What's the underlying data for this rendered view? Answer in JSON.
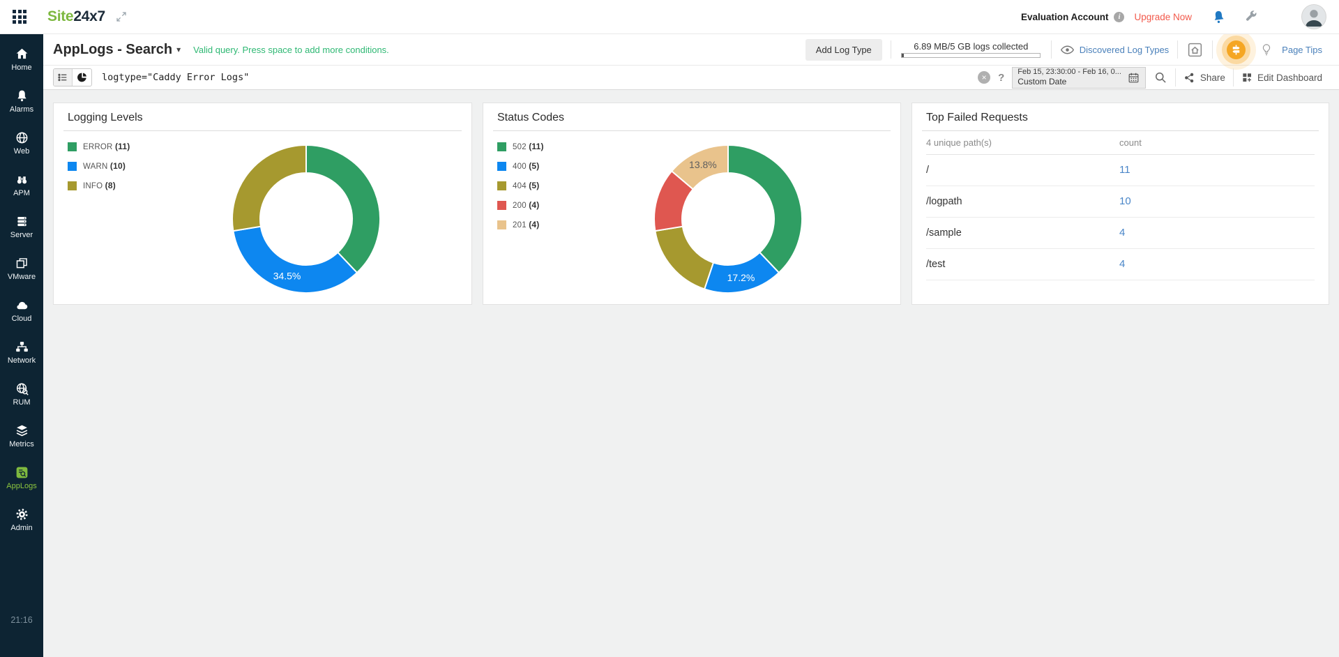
{
  "topbar": {
    "logo_prefix": "Site",
    "logo_suffix": "24x7",
    "account_label": "Evaluation Account",
    "upgrade_label": "Upgrade Now"
  },
  "sidebar": {
    "items": [
      {
        "icon": "home",
        "label": "Home",
        "active": false
      },
      {
        "icon": "alarms",
        "label": "Alarms",
        "active": false
      },
      {
        "icon": "web",
        "label": "Web",
        "active": false
      },
      {
        "icon": "apm",
        "label": "APM",
        "active": false
      },
      {
        "icon": "server",
        "label": "Server",
        "active": false
      },
      {
        "icon": "vmware",
        "label": "VMware",
        "active": false
      },
      {
        "icon": "cloud",
        "label": "Cloud",
        "active": false
      },
      {
        "icon": "network",
        "label": "Network",
        "active": false
      },
      {
        "icon": "rum",
        "label": "RUM",
        "active": false
      },
      {
        "icon": "metrics",
        "label": "Metrics",
        "active": false
      },
      {
        "icon": "applogs",
        "label": "AppLogs",
        "active": true
      },
      {
        "icon": "admin",
        "label": "Admin",
        "active": false
      }
    ],
    "time": "21:16"
  },
  "header": {
    "title": "AppLogs - Search",
    "hint": "Valid query. Press space to add more conditions.",
    "add_log_type_label": "Add Log Type",
    "quota_text": "6.89 MB/5 GB logs collected",
    "quota_fill_percent": 0.13,
    "discovered_label": "Discovered Log Types",
    "page_tips_label": "Page Tips"
  },
  "querybar": {
    "query": "logtype=\"Caddy Error Logs\"",
    "date_range": "Feb 15, 23:30:00 - Feb 16, 0...",
    "date_mode": "Custom Date",
    "share_label": "Share",
    "edit_dashboard_label": "Edit Dashboard"
  },
  "icons": {
    "clear": "×",
    "caret_down": "▾",
    "help": "?",
    "info": "i"
  },
  "chart_data": [
    {
      "type": "pie",
      "title": "Logging Levels",
      "legend_position": "left",
      "slices": [
        {
          "label": "ERROR",
          "value": 11,
          "pct": "37.9%",
          "color": "#2f9e63",
          "show_label": false,
          "label_color": "#ffffff"
        },
        {
          "label": "WARN",
          "value": 10,
          "pct": "34.5%",
          "color": "#0d87f0",
          "show_label": true,
          "label_color": "#ffffff"
        },
        {
          "label": "INFO",
          "value": 8,
          "pct": "27.6%",
          "color": "#a6992f",
          "show_label": false,
          "label_color": "#ffffff"
        }
      ]
    },
    {
      "type": "pie",
      "title": "Status Codes",
      "legend_position": "left",
      "slices": [
        {
          "label": "502",
          "value": 11,
          "pct": "37.9%",
          "color": "#2f9e63",
          "show_label": false,
          "label_color": "#ffffff"
        },
        {
          "label": "400",
          "value": 5,
          "pct": "17.2%",
          "color": "#0d87f0",
          "show_label": true,
          "label_color": "#ffffff"
        },
        {
          "label": "404",
          "value": 5,
          "pct": "17.2%",
          "color": "#a6992f",
          "show_label": false,
          "label_color": "#ffffff"
        },
        {
          "label": "200",
          "value": 4,
          "pct": "13.8%",
          "color": "#df5750",
          "show_label": false,
          "label_color": "#ffffff"
        },
        {
          "label": "201",
          "value": 4,
          "pct": "13.8%",
          "color": "#e9c38c",
          "show_label": true,
          "label_color": "#5e5e5e"
        }
      ]
    },
    {
      "type": "table",
      "title": "Top Failed Requests",
      "columns": [
        "4 unique path(s)",
        "count"
      ],
      "rows": [
        {
          "path": "/",
          "count": 11
        },
        {
          "path": "/logpath",
          "count": 10
        },
        {
          "path": "/sample",
          "count": 4
        },
        {
          "path": "/test",
          "count": 4
        }
      ]
    }
  ]
}
